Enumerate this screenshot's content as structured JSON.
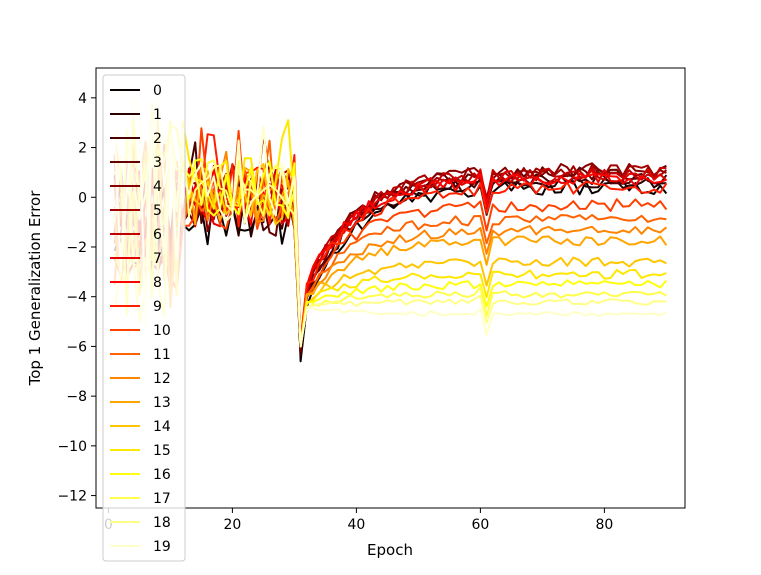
{
  "chart_data": {
    "type": "line",
    "title": "",
    "xlabel": "Epoch",
    "ylabel": "Top 1 Generalization Error",
    "xlim": [
      -2,
      93
    ],
    "ylim": [
      -12.5,
      5.2
    ],
    "x_ticks": [
      0,
      20,
      40,
      60,
      80
    ],
    "y_ticks": [
      4,
      2,
      0,
      -2,
      -4,
      -6,
      -8,
      -10,
      -12
    ],
    "x_tick_labels": [
      "0",
      "20",
      "40",
      "60",
      "80"
    ],
    "y_tick_labels": [
      "4",
      "2",
      "0",
      "−2",
      "−4",
      "−6",
      "−8",
      "−10",
      "−12"
    ],
    "grid": false,
    "legend_position": "upper-left",
    "colormap": "hot",
    "x_range": [
      1,
      90
    ],
    "series": [
      {
        "name": "0",
        "color": "#0b0000",
        "drop_min": -6.6,
        "plateau": 0.4,
        "noise": 0.28,
        "early_level": -0.6
      },
      {
        "name": "1",
        "color": "#2a0000",
        "drop_min": -6.4,
        "plateau": 0.65,
        "noise": 0.28,
        "early_level": -0.5
      },
      {
        "name": "2",
        "color": "#480000",
        "drop_min": -6.3,
        "plateau": 0.8,
        "noise": 0.28,
        "early_level": -0.4
      },
      {
        "name": "3",
        "color": "#660000",
        "drop_min": -6.2,
        "plateau": 1.0,
        "noise": 0.28,
        "early_level": -0.3
      },
      {
        "name": "4",
        "color": "#850000",
        "drop_min": -6.1,
        "plateau": 1.1,
        "noise": 0.28,
        "early_level": -0.2
      },
      {
        "name": "5",
        "color": "#a30000",
        "drop_min": -6.0,
        "plateau": 1.05,
        "noise": 0.28,
        "early_level": -0.1
      },
      {
        "name": "6",
        "color": "#c10000",
        "drop_min": -5.9,
        "plateau": 0.95,
        "noise": 0.28,
        "early_level": 0.0
      },
      {
        "name": "7",
        "color": "#df0000",
        "drop_min": -5.9,
        "plateau": 0.85,
        "noise": 0.28,
        "early_level": 0.1
      },
      {
        "name": "8",
        "color": "#fd0000",
        "drop_min": -5.8,
        "plateau": 0.7,
        "noise": 0.28,
        "early_level": 0.1
      },
      {
        "name": "9",
        "color": "#ff1f00",
        "drop_min": -5.8,
        "plateau": 0.4,
        "noise": 0.25,
        "early_level": 0.0
      },
      {
        "name": "10",
        "color": "#ff4100",
        "drop_min": -5.9,
        "plateau": -0.3,
        "noise": 0.25,
        "early_level": 0.0
      },
      {
        "name": "11",
        "color": "#ff6200",
        "drop_min": -5.9,
        "plateau": -0.85,
        "noise": 0.22,
        "early_level": 0.0
      },
      {
        "name": "12",
        "color": "#ff8400",
        "drop_min": -6.0,
        "plateau": -1.3,
        "noise": 0.2,
        "early_level": 0.0
      },
      {
        "name": "13",
        "color": "#ffa500",
        "drop_min": -6.0,
        "plateau": -1.75,
        "noise": 0.2,
        "early_level": 0.0
      },
      {
        "name": "14",
        "color": "#ffc600",
        "drop_min": -6.0,
        "plateau": -2.6,
        "noise": 0.2,
        "early_level": 0.2
      },
      {
        "name": "15",
        "color": "#ffe800",
        "drop_min": -6.0,
        "plateau": -3.1,
        "noise": 0.18,
        "early_level": 0.3
      },
      {
        "name": "16",
        "color": "#ffff0e",
        "drop_min": -6.0,
        "plateau": -3.5,
        "noise": 0.16,
        "early_level": 0.3
      },
      {
        "name": "17",
        "color": "#ffff4b",
        "drop_min": -6.0,
        "plateau": -3.9,
        "noise": 0.14,
        "early_level": 0.2
      },
      {
        "name": "18",
        "color": "#ffff88",
        "drop_min": -6.0,
        "plateau": -4.2,
        "noise": 0.12,
        "early_level": 0.2
      },
      {
        "name": "19",
        "color": "#ffffc6",
        "drop_min": -6.0,
        "plateau": -4.7,
        "noise": 0.1,
        "early_level": 0.1
      }
    ]
  }
}
